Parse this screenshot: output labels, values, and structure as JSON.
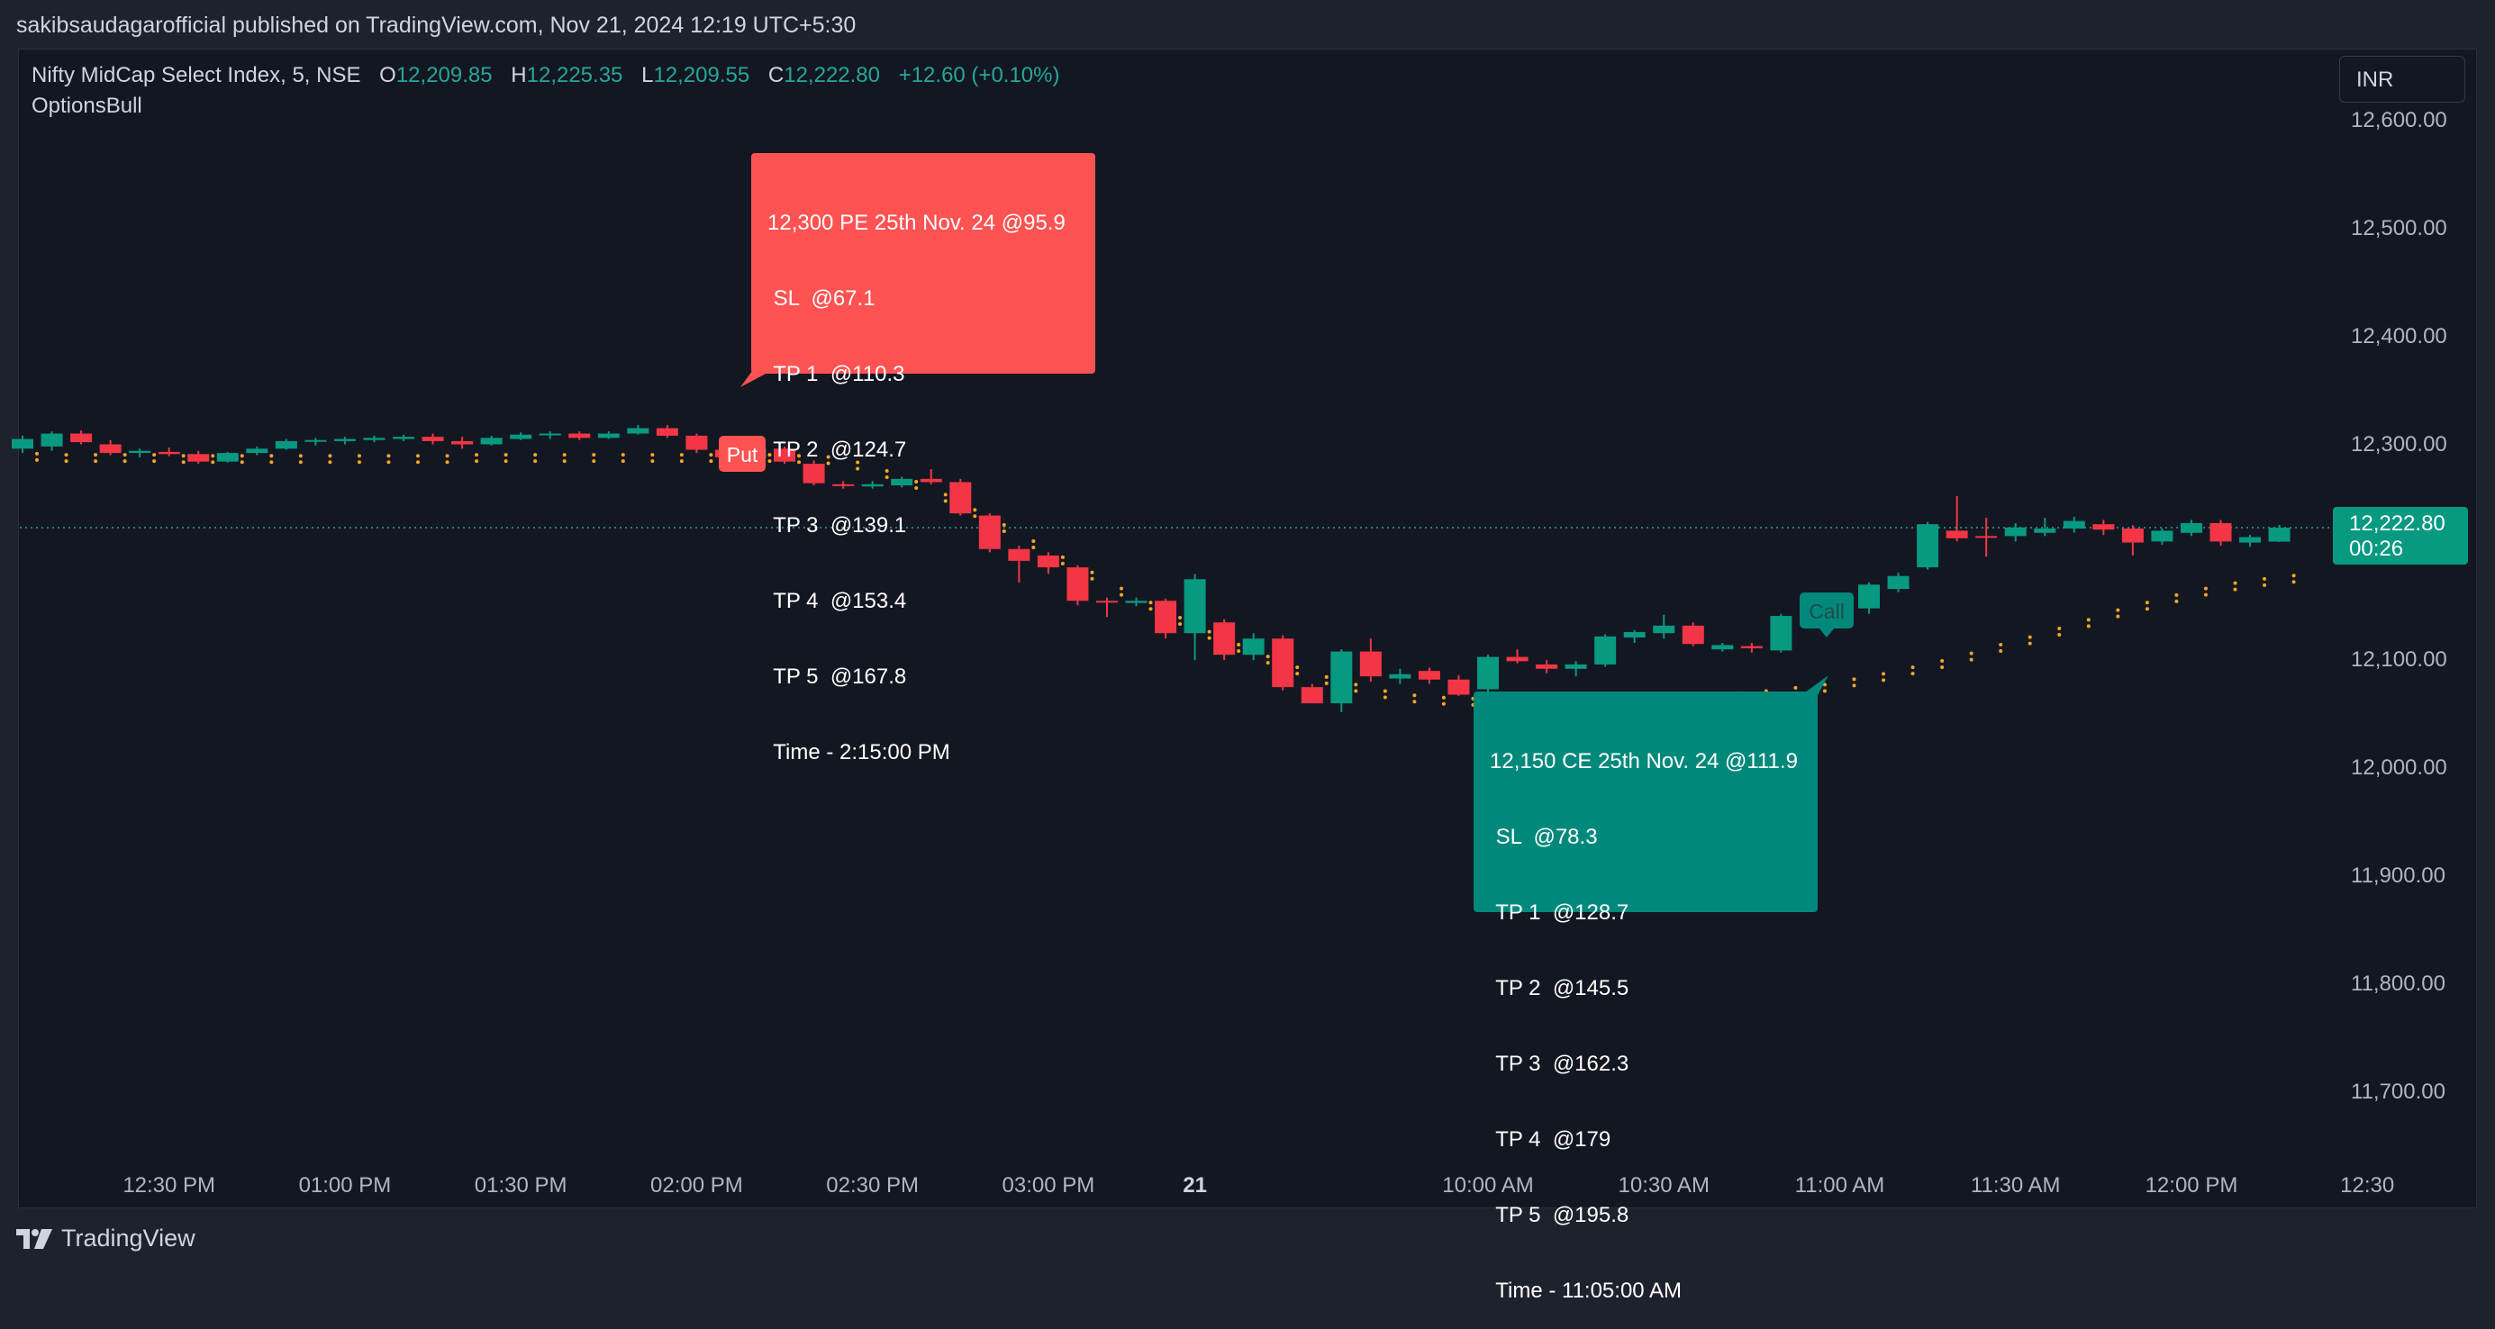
{
  "header": {
    "published_text": "sakibsaudagarofficial published on TradingView.com, Nov 21, 2024 12:19 UTC+5:30"
  },
  "legend": {
    "symbol": "Nifty MidCap Select Index, 5, NSE",
    "open_label": "O",
    "open": "12,209.85",
    "high_label": "H",
    "high": "12,225.35",
    "low_label": "L",
    "low": "12,209.55",
    "close_label": "C",
    "close": "12,222.80",
    "change": "+12.60 (+0.10%)",
    "indicator": "OptionsBull"
  },
  "currency": "INR",
  "price_tag": {
    "price": "12,222.80",
    "countdown": "00:26"
  },
  "colors": {
    "up": "#089981",
    "down": "#f23645",
    "dots": "#f5a623",
    "background": "#131722",
    "put_box": "#ff5252",
    "call_box": "#00897b"
  },
  "put_signal": {
    "marker": "Put",
    "lines": [
      "12,300 PE 25th Nov. 24 @95.9",
      " SL  @67.1",
      " TP 1  @110.3",
      " TP 2  @124.7",
      " TP 3  @139.1",
      " TP 4  @153.4",
      " TP 5  @167.8",
      " Time - 2:15:00 PM"
    ]
  },
  "call_signal": {
    "marker": "Call",
    "lines": [
      "12,150 CE 25th Nov. 24 @111.9",
      " SL  @78.3",
      " TP 1  @128.7",
      " TP 2  @145.5",
      " TP 3  @162.3",
      " TP 4  @179",
      " TP 5  @195.8",
      " Time - 11:05:00 AM"
    ]
  },
  "footer": {
    "brand": "TradingView"
  },
  "chart_data": {
    "type": "candlestick",
    "ylim": [
      11600,
      12620
    ],
    "y_ticks": [
      "12,600.00",
      "12,500.00",
      "12,400.00",
      "12,300.00",
      "12,100.00",
      "12,000.00",
      "11,900.00",
      "11,800.00",
      "11,700.00"
    ],
    "y_tick_values": [
      12600,
      12500,
      12400,
      12300,
      12100,
      12000,
      11900,
      11800,
      11700
    ],
    "x_ticks": [
      {
        "label": "12:30 PM",
        "index": 5
      },
      {
        "label": "01:00 PM",
        "index": 11
      },
      {
        "label": "01:30 PM",
        "index": 17
      },
      {
        "label": "02:00 PM",
        "index": 23
      },
      {
        "label": "02:30 PM",
        "index": 29
      },
      {
        "label": "03:00 PM",
        "index": 35
      },
      {
        "label": "21",
        "index": 40,
        "bold": true
      },
      {
        "label": "10:00 AM",
        "index": 50
      },
      {
        "label": "10:30 AM",
        "index": 56
      },
      {
        "label": "11:00 AM",
        "index": 62
      },
      {
        "label": "11:30 AM",
        "index": 68
      },
      {
        "label": "12:00 PM",
        "index": 74
      },
      {
        "label": "12:30",
        "index": 80
      }
    ],
    "last_price": 12222.8,
    "candles": [
      [
        12296,
        12308,
        12292,
        12305
      ],
      [
        12298,
        12312,
        12294,
        12310
      ],
      [
        12310,
        12313,
        12300,
        12302
      ],
      [
        12300,
        12304,
        12290,
        12292
      ],
      [
        12292,
        12296,
        12288,
        12294
      ],
      [
        12293,
        12297,
        12289,
        12291
      ],
      [
        12291,
        12294,
        12282,
        12284
      ],
      [
        12284,
        12293,
        12283,
        12292
      ],
      [
        12292,
        12298,
        12290,
        12296
      ],
      [
        12296,
        12305,
        12295,
        12303
      ],
      [
        12303,
        12306,
        12299,
        12304
      ],
      [
        12303,
        12307,
        12300,
        12305
      ],
      [
        12304,
        12308,
        12302,
        12306
      ],
      [
        12305,
        12309,
        12303,
        12307
      ],
      [
        12307,
        12310,
        12300,
        12303
      ],
      [
        12303,
        12307,
        12296,
        12300
      ],
      [
        12300,
        12308,
        12299,
        12306
      ],
      [
        12305,
        12311,
        12304,
        12309
      ],
      [
        12309,
        12312,
        12305,
        12310
      ],
      [
        12310,
        12312,
        12304,
        12306
      ],
      [
        12306,
        12312,
        12305,
        12310
      ],
      [
        12310,
        12318,
        12309,
        12315
      ],
      [
        12315,
        12318,
        12306,
        12308
      ],
      [
        12308,
        12310,
        12292,
        12295
      ],
      [
        12295,
        12299,
        12286,
        12288
      ],
      [
        12287,
        12300,
        12285,
        12296
      ],
      [
        12296,
        12298,
        12282,
        12284
      ],
      [
        12282,
        12285,
        12262,
        12264
      ],
      [
        12263,
        12266,
        12259,
        12262
      ],
      [
        12261,
        12266,
        12259,
        12263
      ],
      [
        12262,
        12270,
        12260,
        12268
      ],
      [
        12268,
        12277,
        12263,
        12265
      ],
      [
        12265,
        12268,
        12234,
        12236
      ],
      [
        12234,
        12236,
        12200,
        12203
      ],
      [
        12203,
        12206,
        12172,
        12192
      ],
      [
        12197,
        12200,
        12180,
        12186
      ],
      [
        12186,
        12188,
        12151,
        12155
      ],
      [
        12155,
        12158,
        12140,
        12154
      ],
      [
        12153,
        12158,
        12150,
        12155
      ],
      [
        12155,
        12157,
        12120,
        12125
      ],
      [
        12125,
        12180,
        12100,
        12175
      ],
      [
        12135,
        12138,
        12100,
        12105
      ],
      [
        12105,
        12125,
        12100,
        12120
      ],
      [
        12120,
        12123,
        12072,
        12075
      ],
      [
        12075,
        12078,
        12060,
        12060
      ],
      [
        12060,
        12110,
        12052,
        12108
      ],
      [
        12108,
        12120,
        12080,
        12085
      ],
      [
        12083,
        12092,
        12078,
        12087
      ],
      [
        12090,
        12093,
        12078,
        12082
      ],
      [
        12082,
        12086,
        12067,
        12068
      ],
      [
        12073,
        12105,
        12063,
        12103
      ],
      [
        12103,
        12110,
        12097,
        12099
      ],
      [
        12096,
        12100,
        12088,
        12092
      ],
      [
        12092,
        12099,
        12085,
        12096
      ],
      [
        12096,
        12124,
        12094,
        12122
      ],
      [
        12121,
        12128,
        12116,
        12126
      ],
      [
        12125,
        12142,
        12120,
        12132
      ],
      [
        12132,
        12135,
        12113,
        12115
      ],
      [
        12110,
        12116,
        12108,
        12114
      ],
      [
        12113,
        12116,
        12107,
        12111
      ],
      [
        12109,
        12143,
        12107,
        12141
      ],
      [
        12140,
        12144,
        12134,
        12136
      ],
      [
        12135,
        12160,
        12133,
        12158
      ],
      [
        12148,
        12172,
        12143,
        12170
      ],
      [
        12166,
        12181,
        12163,
        12178
      ],
      [
        12186,
        12228,
        12184,
        12226
      ],
      [
        12220,
        12252,
        12210,
        12213
      ],
      [
        12215,
        12232,
        12196,
        12214
      ],
      [
        12215,
        12227,
        12210,
        12223
      ],
      [
        12218,
        12232,
        12215,
        12222
      ],
      [
        12222,
        12233,
        12218,
        12229
      ],
      [
        12226,
        12230,
        12216,
        12221
      ],
      [
        12222,
        12225,
        12197,
        12209
      ],
      [
        12210,
        12222,
        12207,
        12220
      ],
      [
        12218,
        12230,
        12215,
        12227
      ],
      [
        12227,
        12230,
        12206,
        12210
      ],
      [
        12209,
        12216,
        12205,
        12214
      ],
      [
        12209.85,
        12225.35,
        12209.55,
        12222.8
      ]
    ],
    "dots": [
      12288,
      12287,
      12287,
      12287,
      12287,
      12286,
      12286,
      12286,
      12286,
      12286,
      12286,
      12286,
      12286,
      12286,
      12286,
      12287,
      12287,
      12287,
      12287,
      12287,
      12287,
      12287,
      12287,
      12287,
      12288,
      12287,
      12286,
      12285,
      12280,
      12272,
      12262,
      12250,
      12236,
      12222,
      12207,
      12192,
      12178,
      12163,
      12150,
      12136,
      12123,
      12111,
      12100,
      12090,
      12081,
      12074,
      12068,
      12064,
      12062,
      12061,
      12061,
      12061,
      12061,
      12061,
      12061,
      12062,
      12063,
      12064,
      12066,
      12068,
      12071,
      12074,
      12079,
      12084,
      12090,
      12096,
      12103,
      12111,
      12118,
      12126,
      12134,
      12143,
      12150,
      12157,
      12163,
      12168,
      12172,
      12175
    ]
  }
}
